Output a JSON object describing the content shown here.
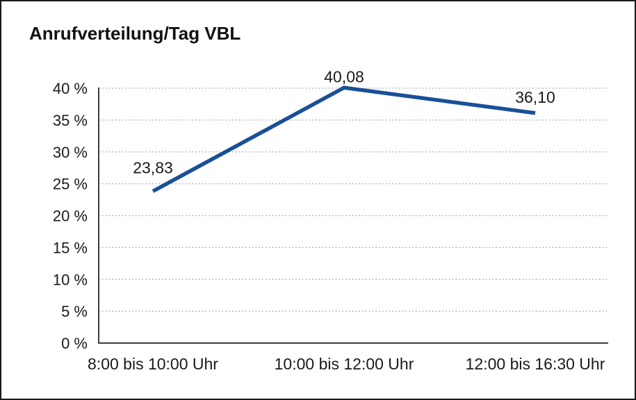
{
  "window": {
    "background": "#ffffff",
    "border_color": "#1b1b1b"
  },
  "chart_data": {
    "type": "line",
    "title": "Anrufverteilung/Tag VBL",
    "categories": [
      "8:00 bis 10:00 Uhr",
      "10:00 bis 12:00 Uhr",
      "12:00 bis 16:30 Uhr"
    ],
    "series": [
      {
        "name": "Anrufverteilung/Tag VBL",
        "values": [
          23.83,
          40.08,
          36.1
        ],
        "point_labels": [
          "23,83",
          "40,08",
          "36,10"
        ]
      }
    ],
    "xlabel": "",
    "ylabel": "",
    "ylim": [
      0,
      40
    ],
    "ytick_step": 5,
    "ytick_labels": [
      "0 %",
      "5 %",
      "10 %",
      "15 %",
      "20 %",
      "25 %",
      "30 %",
      "35 %",
      "40 %"
    ],
    "grid": "horizontal-dotted",
    "legend_position": "none",
    "colors": {
      "line": "#1a4f99",
      "axis": "#3c3c3c",
      "grid": "#9c9c9c",
      "text": "#1a1a1a",
      "title": "#111111"
    }
  }
}
